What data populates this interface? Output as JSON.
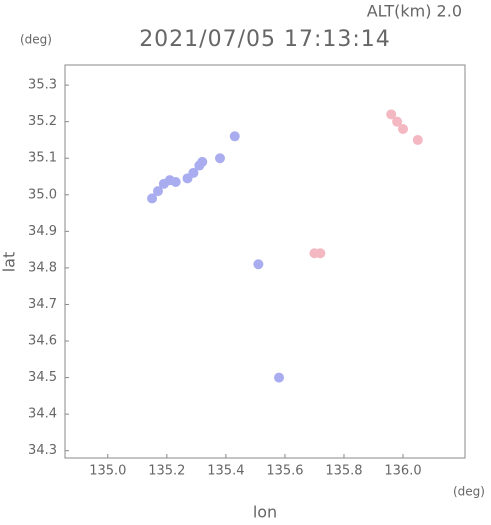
{
  "chart_data": {
    "type": "scatter",
    "title": "2021/07/05 17:13:14",
    "annotation": "ALT(km) 2.0",
    "y_unit": "(deg)",
    "x_unit": "(deg)",
    "xlabel": "lon",
    "ylabel": "lat",
    "xlim": [
      134.855,
      136.21
    ],
    "ylim": [
      34.28,
      35.355
    ],
    "xticks": [
      {
        "value": 135.0,
        "label": "135.0"
      },
      135.2,
      135.4,
      135.6,
      135.8,
      {
        "value": 136.0,
        "label": "136.0"
      }
    ],
    "yticks": [
      34.3,
      34.4,
      34.5,
      34.6,
      34.7,
      34.8,
      34.9,
      {
        "value": 35.0,
        "label": "35.0"
      },
      35.1,
      35.2,
      35.3
    ],
    "series": [
      {
        "color": "#a9adf0",
        "x": [
          135.15,
          135.17,
          135.19,
          135.21,
          135.23,
          135.27,
          135.29,
          135.31,
          135.32,
          135.38,
          135.43,
          135.51,
          135.58
        ],
        "values": [
          34.99,
          35.01,
          35.03,
          35.04,
          35.035,
          35.045,
          35.06,
          35.08,
          35.09,
          35.1,
          35.16,
          34.81,
          34.5
        ]
      },
      {
        "color": "#f4b8c2",
        "x": [
          135.96,
          135.98,
          136.0,
          136.05,
          135.7,
          135.72
        ],
        "values": [
          35.22,
          35.2,
          35.18,
          35.15,
          34.84,
          34.84
        ]
      }
    ]
  }
}
